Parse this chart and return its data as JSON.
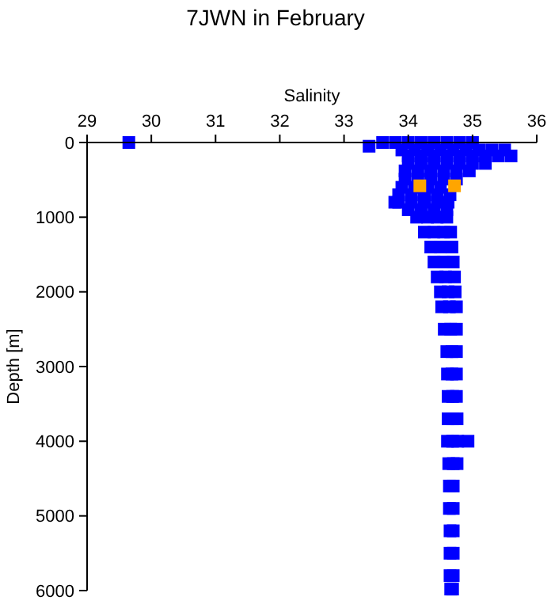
{
  "chart_data": {
    "type": "scatter",
    "title": "7JWN in February",
    "xlabel": "Salinity",
    "ylabel": "Depth [m]",
    "xlim": [
      29,
      36
    ],
    "xticks": [
      29,
      30,
      31,
      32,
      33,
      34,
      35,
      36
    ],
    "ylim": [
      6000,
      0
    ],
    "yticks": [
      0,
      1000,
      2000,
      3000,
      4000,
      5000,
      6000
    ],
    "marker": "square",
    "grid": false,
    "series": [
      {
        "color": "#0000ff",
        "x": [
          33.6,
          33.8,
          34.0,
          34.2,
          34.4,
          34.6,
          34.8,
          35.0,
          33.9,
          34.1,
          34.3,
          34.5,
          34.7,
          34.9,
          35.1,
          35.3,
          35.5,
          34.0,
          34.2,
          34.4,
          34.6,
          34.8,
          35.0,
          35.2,
          35.4,
          35.6,
          34.0,
          34.2,
          34.4,
          34.6,
          34.8,
          35.0,
          35.2,
          33.95,
          34.15,
          34.35,
          34.55,
          34.75,
          34.95,
          33.95,
          34.15,
          34.35,
          34.55,
          34.75,
          33.9,
          34.1,
          34.3,
          34.5,
          33.85,
          34.05,
          34.25,
          34.45,
          34.65,
          33.85,
          34.05,
          34.25,
          34.45,
          34.62,
          34.0,
          34.2,
          34.4,
          34.6,
          34.13,
          34.3,
          34.45,
          34.6,
          34.25,
          34.4,
          34.55,
          34.66,
          34.35,
          34.5,
          34.68,
          34.4,
          34.55,
          34.7,
          34.45,
          34.58,
          34.72,
          34.5,
          34.62,
          34.73,
          34.52,
          34.64,
          34.75,
          34.56,
          34.66,
          34.75,
          34.6,
          34.68,
          34.75,
          34.61,
          34.68,
          34.75,
          34.62,
          34.69,
          34.75,
          34.62,
          34.69,
          34.76,
          34.61,
          34.69,
          34.77,
          34.63,
          34.7,
          34.76,
          34.64,
          34.7,
          34.64,
          34.7,
          34.65,
          34.7,
          34.65,
          34.7,
          34.65,
          34.7,
          34.66,
          34.69,
          29.65,
          33.39,
          33.79,
          34.93
        ],
        "values": [
          0,
          0,
          0,
          0,
          0,
          0,
          0,
          0,
          100,
          100,
          100,
          100,
          100,
          100,
          100,
          100,
          100,
          180,
          180,
          180,
          180,
          180,
          180,
          180,
          180,
          180,
          280,
          280,
          280,
          280,
          280,
          280,
          280,
          380,
          380,
          380,
          380,
          380,
          380,
          490,
          490,
          490,
          490,
          490,
          600,
          600,
          600,
          600,
          700,
          700,
          700,
          700,
          700,
          800,
          800,
          800,
          800,
          800,
          900,
          900,
          900,
          900,
          1000,
          1000,
          1000,
          1000,
          1200,
          1200,
          1200,
          1200,
          1400,
          1400,
          1400,
          1600,
          1600,
          1600,
          1800,
          1800,
          1800,
          2000,
          2000,
          2000,
          2200,
          2200,
          2200,
          2500,
          2500,
          2500,
          2800,
          2800,
          2800,
          3100,
          3100,
          3100,
          3400,
          3400,
          3400,
          3700,
          3700,
          3700,
          4000,
          4000,
          4000,
          4300,
          4300,
          4300,
          4600,
          4600,
          4900,
          4900,
          5200,
          5200,
          5500,
          5500,
          5800,
          5800,
          5980,
          5980,
          0,
          50,
          800,
          4000
        ]
      },
      {
        "color": "#ffa500",
        "x": [
          34.18,
          34.72
        ],
        "values": [
          580,
          580
        ]
      }
    ]
  }
}
